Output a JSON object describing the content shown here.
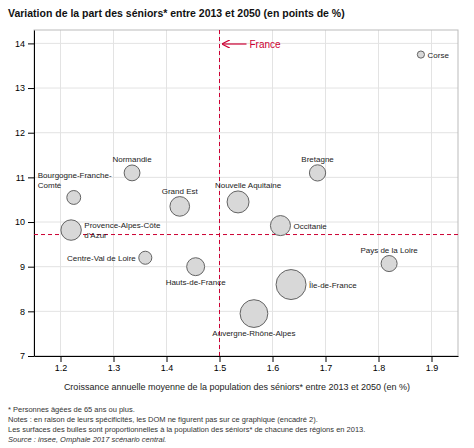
{
  "chart_data": {
    "type": "bubble",
    "title": "Variation de la part des séniors* entre 2013 et 2050 (en points de %)",
    "x_label": "Croissance annuelle moyenne de la population des séniors* entre 2013 et 2050 (en %)",
    "xlim": [
      1.15,
      1.95
    ],
    "ylim": [
      7.0,
      14.3
    ],
    "xticks": [
      1.2,
      1.3,
      1.4,
      1.5,
      1.6,
      1.7,
      1.8,
      1.9
    ],
    "yticks": [
      7,
      8,
      9,
      10,
      11,
      12,
      13,
      14
    ],
    "grid": true,
    "reference_lines": {
      "x": 1.5,
      "y": 9.72,
      "label": "France",
      "color": "#cc0033"
    },
    "labels": [
      "Corse",
      "Normandie",
      "Bourgogne-Franche-\nComté",
      "Grand Est",
      "Nouvelle Aquitaine",
      "Bretagne",
      "Occitanie",
      "Centre-Val de Loire",
      "Hauts-de-France",
      "Île-de-France",
      "Auvergne-Rhône-Alpes",
      "Pays de la Loire",
      "Provence-Alpes-Côte\nd'Azur"
    ],
    "x": [
      1.88,
      1.335,
      1.225,
      1.425,
      1.535,
      1.685,
      1.615,
      1.36,
      1.455,
      1.635,
      1.565,
      1.82,
      1.22
    ],
    "values": [
      13.75,
      11.1,
      10.55,
      10.35,
      10.45,
      11.1,
      9.92,
      9.2,
      9.0,
      8.6,
      7.95,
      9.07,
      9.82
    ],
    "sizes": [
      160,
      780,
      600,
      1200,
      1500,
      820,
      1250,
      530,
      1000,
      2800,
      2400,
      800,
      1300
    ],
    "color": "#d8d8d8",
    "footnotes": [
      "* Personnes âgées de 65 ans ou plus.",
      "Notes : en raison de leurs spécificités, les DOM ne figurent pas sur ce graphique (encadré 2).",
      "Les surfaces des bulles sont proportionnelles à la population des séniors* de chacune des régions en 2013.",
      "Source : insee, Omphale 2017 scénario central."
    ]
  }
}
